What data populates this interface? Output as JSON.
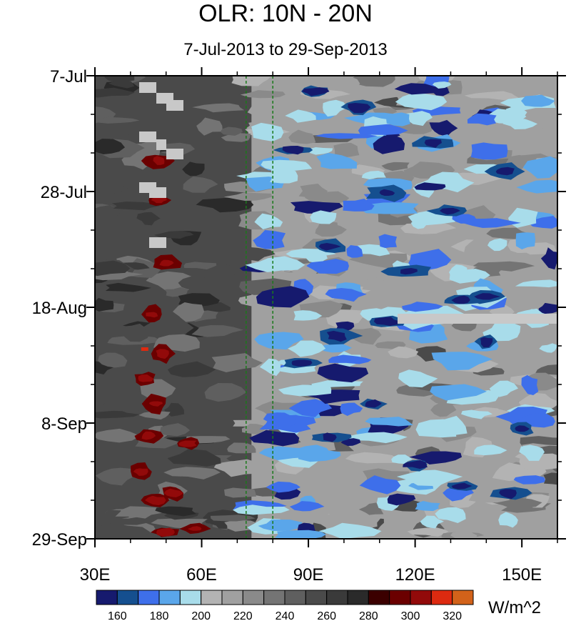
{
  "chart_data": {
    "type": "heatmap",
    "title": "OLR: 10N - 20N",
    "subtitle": "7-Jul-2013 to 29-Sep-2013",
    "x_axis": {
      "range": [
        30,
        160
      ],
      "ticks": [
        30,
        60,
        90,
        120,
        150
      ],
      "tick_labels": [
        "30E",
        "60E",
        "90E",
        "120E",
        "150E"
      ],
      "minor_ticks": [
        40,
        50,
        70,
        80,
        100,
        110,
        130,
        140,
        160
      ]
    },
    "y_axis": {
      "range": [
        "2013-07-07",
        "2013-09-29"
      ],
      "tick_labels": [
        "7-Jul",
        "28-Jul",
        "18-Aug",
        "8-Sep",
        "29-Sep"
      ],
      "reversed": true
    },
    "reference_lines": [
      72.5,
      80
    ],
    "colorbar": {
      "unit": "W/m^2",
      "levels": [
        150,
        160,
        170,
        180,
        190,
        200,
        210,
        220,
        230,
        240,
        250,
        260,
        270,
        280,
        290,
        300,
        310,
        320,
        330
      ],
      "labels": [
        "160",
        "180",
        "200",
        "220",
        "240",
        "260",
        "280",
        "300",
        "320"
      ],
      "colors": [
        "#161a6e",
        "#154f8f",
        "#3e6fea",
        "#5aa6ea",
        "#a8dcea",
        "#b3b3b3",
        "#a0a0a0",
        "#8a8a8a",
        "#747474",
        "#5f5f5f",
        "#4a4a4a",
        "#3a3a3a",
        "#2a2a2a",
        "#3b0000",
        "#6b0000",
        "#920a0a",
        "#dd2a10",
        "#d2621a"
      ]
    },
    "missing_data_color": "#c8c8c8"
  }
}
